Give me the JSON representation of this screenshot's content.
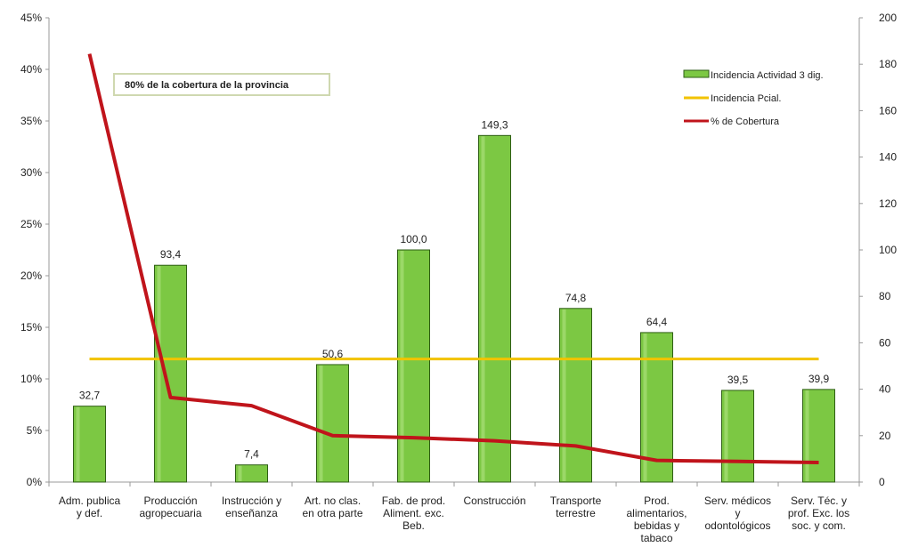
{
  "chart_data": {
    "type": "bar",
    "categories": [
      [
        "Adm. publica",
        "y def."
      ],
      [
        "Producción",
        "agropecuaria"
      ],
      [
        "Instrucción y",
        "enseñanza"
      ],
      [
        "Art. no clas.",
        "en otra parte"
      ],
      [
        "Fab. de prod.",
        "Aliment. exc.",
        "Beb."
      ],
      [
        "Construcción"
      ],
      [
        "Transporte",
        "terrestre"
      ],
      [
        "Prod.",
        "alimentarios,",
        "bebidas y",
        "tabaco"
      ],
      [
        "Serv. médicos",
        "y",
        "odontológicos"
      ],
      [
        "Serv. Téc. y",
        "prof. Exc. los",
        "soc. y com."
      ]
    ],
    "series": [
      {
        "name": "Incidencia Actividad 3 dig.",
        "axis": "right",
        "type": "bar",
        "color": "#7cc843",
        "values": [
          32.7,
          93.4,
          7.4,
          50.6,
          100.0,
          149.3,
          74.8,
          64.4,
          39.5,
          39.9
        ],
        "labels": [
          "32,7",
          "93,4",
          "7,4",
          "50,6",
          "100,0",
          "149,3",
          "74,8",
          "64,4",
          "39,5",
          "39,9"
        ]
      },
      {
        "name": "Incidencia Pcial.",
        "axis": "right",
        "type": "line",
        "color": "#f2c300",
        "values": [
          53,
          53,
          53,
          53,
          53,
          53,
          53,
          53,
          53,
          53
        ]
      },
      {
        "name": "% de Cobertura",
        "axis": "left",
        "type": "line",
        "color": "#c0141b",
        "values": [
          41.5,
          8.2,
          7.4,
          4.5,
          4.3,
          4.0,
          3.5,
          2.1,
          2.0,
          1.9
        ]
      }
    ],
    "y_left": {
      "min": 0,
      "max": 45,
      "step": 5,
      "ticks": [
        "0%",
        "5%",
        "10%",
        "15%",
        "20%",
        "25%",
        "30%",
        "35%",
        "40%",
        "45%"
      ]
    },
    "y_right": {
      "min": 0,
      "max": 200,
      "step": 20,
      "ticks": [
        "0",
        "20",
        "40",
        "60",
        "80",
        "100",
        "120",
        "140",
        "160",
        "180",
        "200"
      ]
    },
    "annotation": "80% de la cobertura de la provincia",
    "legend_position": "top-right",
    "grid": false
  }
}
